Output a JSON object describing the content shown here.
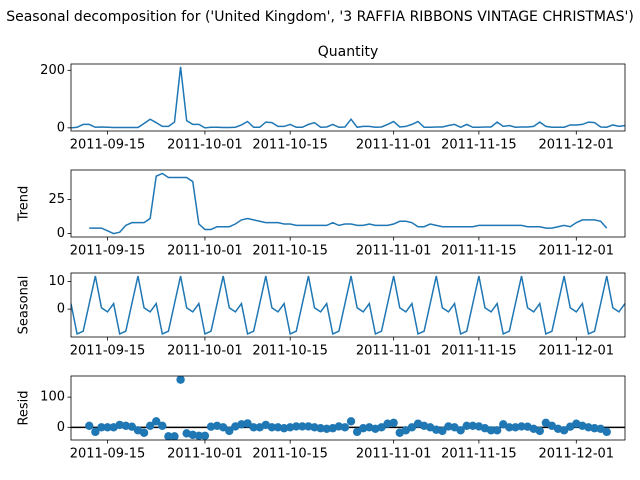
{
  "chart_data": {
    "title": "Seasonal decomposition for ('United Kingdom', '3 RAFFIA RIBBONS VINTAGE CHRISTMAS')",
    "x": [
      "2011-09-09",
      "2011-09-10",
      "2011-09-11",
      "2011-09-12",
      "2011-09-13",
      "2011-09-14",
      "2011-09-15",
      "2011-09-16",
      "2011-09-17",
      "2011-09-18",
      "2011-09-19",
      "2011-09-20",
      "2011-09-21",
      "2011-09-22",
      "2011-09-23",
      "2011-09-24",
      "2011-09-25",
      "2011-09-26",
      "2011-09-27",
      "2011-09-28",
      "2011-09-29",
      "2011-09-30",
      "2011-10-01",
      "2011-10-02",
      "2011-10-03",
      "2011-10-04",
      "2011-10-05",
      "2011-10-06",
      "2011-10-07",
      "2011-10-08",
      "2011-10-09",
      "2011-10-10",
      "2011-10-11",
      "2011-10-12",
      "2011-10-13",
      "2011-10-14",
      "2011-10-15",
      "2011-10-16",
      "2011-10-17",
      "2011-10-18",
      "2011-10-19",
      "2011-10-20",
      "2011-10-21",
      "2011-10-22",
      "2011-10-23",
      "2011-10-24",
      "2011-10-25",
      "2011-10-26",
      "2011-10-27",
      "2011-10-28",
      "2011-10-29",
      "2011-10-30",
      "2011-10-31",
      "2011-11-01",
      "2011-11-02",
      "2011-11-03",
      "2011-11-04",
      "2011-11-05",
      "2011-11-06",
      "2011-11-07",
      "2011-11-08",
      "2011-11-09",
      "2011-11-10",
      "2011-11-11",
      "2011-11-12",
      "2011-11-13",
      "2011-11-14",
      "2011-11-15",
      "2011-11-16",
      "2011-11-17",
      "2011-11-18",
      "2011-11-19",
      "2011-11-20",
      "2011-11-21",
      "2011-11-22",
      "2011-11-23",
      "2011-11-24",
      "2011-11-25",
      "2011-11-26",
      "2011-11-27",
      "2011-11-28",
      "2011-11-29",
      "2011-11-30",
      "2011-12-01",
      "2011-12-02",
      "2011-12-03",
      "2011-12-04",
      "2011-12-05",
      "2011-12-06",
      "2011-12-07",
      "2011-12-08",
      "2011-12-09"
    ],
    "xlim": [
      "2011-09-09",
      "2011-12-09"
    ],
    "xticks": [
      "2011-09-15",
      "2011-10-01",
      "2011-10-15",
      "2011-11-01",
      "2011-11-15",
      "2011-12-01"
    ],
    "panels": [
      {
        "type": "line",
        "title": "Quantity",
        "color": "#1f77b4",
        "ylim": [
          -11,
          222
        ],
        "yticks": [
          0,
          200
        ],
        "values": [
          0,
          2,
          12,
          12,
          2,
          3,
          2,
          1,
          1,
          1,
          1,
          1,
          15,
          30,
          18,
          5,
          5,
          20,
          212,
          25,
          12,
          12,
          0,
          2,
          2,
          1,
          1,
          2,
          10,
          22,
          2,
          2,
          20,
          18,
          5,
          5,
          12,
          2,
          2,
          12,
          18,
          2,
          3,
          12,
          2,
          3,
          30,
          2,
          5,
          5,
          2,
          3,
          12,
          22,
          3,
          5,
          12,
          22,
          2,
          2,
          3,
          3,
          8,
          12,
          2,
          12,
          2,
          2,
          3,
          3,
          20,
          5,
          8,
          2,
          3,
          3,
          5,
          20,
          5,
          2,
          2,
          2,
          10,
          10,
          12,
          20,
          18,
          3,
          2,
          10,
          5,
          8
        ]
      },
      {
        "type": "line",
        "ylabel": "Trend",
        "color": "#1f77b4",
        "ylim": [
          -2.5,
          46.5
        ],
        "yticks": [
          0,
          25
        ],
        "values": [
          null,
          null,
          null,
          4,
          4,
          4,
          2,
          0,
          1,
          6,
          8,
          8,
          8,
          11,
          42,
          44,
          41,
          41,
          41,
          41,
          38,
          7,
          3,
          3,
          5,
          5,
          5,
          7,
          10,
          11,
          10,
          9,
          8,
          8,
          8,
          7,
          7,
          6,
          6,
          6,
          6,
          6,
          6,
          8,
          6,
          7,
          7,
          6,
          6,
          7,
          6,
          6,
          6,
          7,
          9,
          9,
          8,
          5,
          5,
          7,
          6,
          5,
          5,
          5,
          5,
          5,
          5,
          6,
          6,
          6,
          6,
          6,
          6,
          6,
          6,
          5,
          5,
          5,
          4,
          4,
          5,
          6,
          5,
          8,
          10,
          10,
          10,
          9,
          4,
          null,
          null,
          null
        ]
      },
      {
        "type": "line",
        "ylabel": "Seasonal",
        "color": "#1f77b4",
        "ylim": [
          -10.1,
          13.1
        ],
        "yticks": [
          0,
          10
        ],
        "values": [
          2,
          -9,
          -8,
          2,
          12,
          0.5,
          -1,
          2,
          -9,
          -8,
          2,
          12,
          0.5,
          -1,
          2,
          -9,
          -8,
          2,
          12,
          0.5,
          -1,
          2,
          -9,
          -8,
          2,
          12,
          0.5,
          -1,
          2,
          -9,
          -8,
          2,
          12,
          0.5,
          -1,
          2,
          -9,
          -8,
          2,
          12,
          0.5,
          -1,
          2,
          -9,
          -8,
          2,
          12,
          0.5,
          -1,
          2,
          -9,
          -8,
          2,
          12,
          0.5,
          -1,
          2,
          -9,
          -8,
          2,
          12,
          0.5,
          -1,
          2,
          -9,
          -8,
          2,
          12,
          0.5,
          -1,
          2,
          -9,
          -8,
          2,
          12,
          0.5,
          -1,
          2,
          -9,
          -8,
          2,
          12,
          0.5,
          -1,
          2,
          -9,
          -8,
          2,
          12,
          0.5,
          -1,
          2
        ]
      },
      {
        "type": "scatter",
        "ylabel": "Resid",
        "color": "#1f77b4",
        "ylim": [
          -42,
          170
        ],
        "yticks": [
          0,
          100
        ],
        "values": [
          null,
          null,
          null,
          5,
          -15,
          0,
          0,
          0,
          8,
          5,
          2,
          -10,
          -18,
          5,
          20,
          5,
          -30,
          -30,
          158,
          -20,
          -25,
          -28,
          -28,
          2,
          5,
          0,
          -12,
          3,
          10,
          13,
          0,
          0,
          8,
          0,
          0,
          -3,
          0,
          3,
          3,
          3,
          0,
          -3,
          -5,
          -3,
          3,
          0,
          20,
          -15,
          -3,
          0,
          -5,
          0,
          12,
          15,
          -18,
          -10,
          0,
          12,
          5,
          0,
          -8,
          -12,
          3,
          0,
          -10,
          5,
          5,
          3,
          -3,
          -10,
          -10,
          10,
          0,
          0,
          3,
          2,
          -5,
          -12,
          15,
          5,
          -5,
          -10,
          2,
          12,
          5,
          0,
          -3,
          -5,
          -15,
          null,
          null,
          null
        ]
      }
    ]
  }
}
